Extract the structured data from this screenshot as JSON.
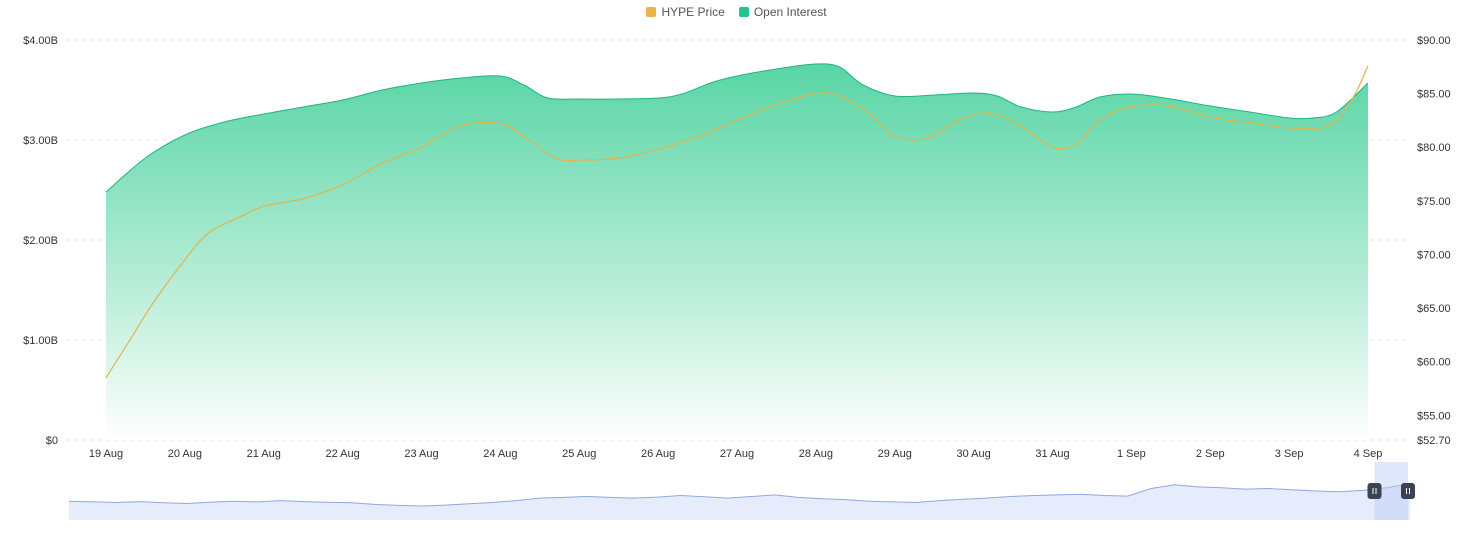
{
  "legend": [
    {
      "label": "HYPE Price",
      "color": "#e8b64c"
    },
    {
      "label": "Open Interest",
      "color": "#1fc48f"
    }
  ],
  "colors": {
    "price_line": "#e2b44a",
    "oi_line": "#1fb582",
    "oi_fill_top": "#4fd3a0",
    "oi_fill_bottom": "#ffffff",
    "grid": "#e8e8e8",
    "navigator_fill": "#e6ecfb",
    "navigator_line": "#8fa8e0",
    "navigator_handle": "#3b4252"
  },
  "chart_data": {
    "type": "area",
    "x": [
      "19 Aug",
      "20 Aug",
      "21 Aug",
      "22 Aug",
      "23 Aug",
      "24 Aug",
      "25 Aug",
      "26 Aug",
      "27 Aug",
      "28 Aug",
      "29 Aug",
      "30 Aug",
      "31 Aug",
      "1 Sep",
      "2 Sep",
      "3 Sep",
      "4 Sep"
    ],
    "series": [
      {
        "name": "Open Interest",
        "axis": "left",
        "points": [
          [
            0,
            2.48
          ],
          [
            0.5,
            2.82
          ],
          [
            1,
            3.05
          ],
          [
            1.5,
            3.18
          ],
          [
            2,
            3.26
          ],
          [
            2.5,
            3.33
          ],
          [
            3,
            3.4
          ],
          [
            3.5,
            3.5
          ],
          [
            4,
            3.57
          ],
          [
            4.5,
            3.62
          ],
          [
            5,
            3.64
          ],
          [
            5.3,
            3.55
          ],
          [
            5.6,
            3.42
          ],
          [
            6,
            3.41
          ],
          [
            6.5,
            3.41
          ],
          [
            7,
            3.42
          ],
          [
            7.3,
            3.46
          ],
          [
            7.7,
            3.58
          ],
          [
            8,
            3.64
          ],
          [
            8.5,
            3.71
          ],
          [
            9,
            3.76
          ],
          [
            9.3,
            3.73
          ],
          [
            9.6,
            3.55
          ],
          [
            10,
            3.44
          ],
          [
            10.5,
            3.45
          ],
          [
            11,
            3.47
          ],
          [
            11.3,
            3.44
          ],
          [
            11.6,
            3.33
          ],
          [
            12,
            3.28
          ],
          [
            12.3,
            3.33
          ],
          [
            12.6,
            3.43
          ],
          [
            13,
            3.46
          ],
          [
            13.5,
            3.41
          ],
          [
            14,
            3.34
          ],
          [
            14.5,
            3.28
          ],
          [
            15,
            3.22
          ],
          [
            15.3,
            3.22
          ],
          [
            15.6,
            3.28
          ],
          [
            16,
            3.57
          ]
        ]
      },
      {
        "name": "HYPE Price",
        "axis": "right",
        "points": [
          [
            0,
            58.5
          ],
          [
            0.3,
            62.0
          ],
          [
            0.6,
            65.5
          ],
          [
            1,
            69.5
          ],
          [
            1.3,
            72.0
          ],
          [
            1.7,
            73.5
          ],
          [
            2,
            74.5
          ],
          [
            2.5,
            75.2
          ],
          [
            3,
            76.5
          ],
          [
            3.5,
            78.5
          ],
          [
            4,
            80.0
          ],
          [
            4.5,
            82.0
          ],
          [
            5,
            82.2
          ],
          [
            5.3,
            81.0
          ],
          [
            5.7,
            79.0
          ],
          [
            6,
            78.8
          ],
          [
            6.5,
            79.0
          ],
          [
            7,
            79.8
          ],
          [
            7.5,
            81.0
          ],
          [
            8,
            82.5
          ],
          [
            8.5,
            84.0
          ],
          [
            9,
            85.0
          ],
          [
            9.3,
            84.8
          ],
          [
            9.7,
            83.0
          ],
          [
            10,
            81.0
          ],
          [
            10.4,
            80.8
          ],
          [
            10.8,
            82.5
          ],
          [
            11.2,
            83.2
          ],
          [
            11.6,
            82.0
          ],
          [
            12,
            80.0
          ],
          [
            12.3,
            80.3
          ],
          [
            12.6,
            82.5
          ],
          [
            13,
            83.8
          ],
          [
            13.5,
            83.8
          ],
          [
            14,
            82.8
          ],
          [
            14.5,
            82.3
          ],
          [
            15,
            81.8
          ],
          [
            15.5,
            82.0
          ],
          [
            15.8,
            84.5
          ],
          [
            16,
            87.6
          ]
        ]
      }
    ],
    "y_left": {
      "ticks": [
        "$0",
        "$1.00B",
        "$2.00B",
        "$3.00B",
        "$4.00B"
      ],
      "values": [
        0,
        1,
        2,
        3,
        4
      ],
      "ylim": [
        0,
        4
      ]
    },
    "y_right": {
      "ticks": [
        "$52.70",
        "$55.00",
        "$60.00",
        "$65.00",
        "$70.00",
        "$75.00",
        "$80.00",
        "$85.00",
        "$90.00"
      ],
      "values": [
        52.7,
        55,
        60,
        65,
        70,
        75,
        80,
        85,
        90
      ],
      "ylim": [
        52.7,
        90
      ]
    },
    "grid": true,
    "legend_position": "top-center",
    "navigator": {
      "type": "area",
      "values": [
        0.4,
        0.38,
        0.36,
        0.39,
        0.35,
        0.33,
        0.37,
        0.4,
        0.38,
        0.42,
        0.39,
        0.37,
        0.35,
        0.3,
        0.27,
        0.25,
        0.28,
        0.32,
        0.36,
        0.42,
        0.5,
        0.52,
        0.55,
        0.52,
        0.5,
        0.53,
        0.58,
        0.54,
        0.5,
        0.55,
        0.6,
        0.52,
        0.48,
        0.45,
        0.4,
        0.38,
        0.36,
        0.42,
        0.46,
        0.5,
        0.55,
        0.58,
        0.6,
        0.62,
        0.58,
        0.56,
        0.8,
        0.92,
        0.85,
        0.82,
        0.78,
        0.8,
        0.76,
        0.72,
        0.7,
        0.74,
        0.82,
        0.95
      ],
      "selected_range": [
        0.978,
        1.0
      ]
    }
  }
}
